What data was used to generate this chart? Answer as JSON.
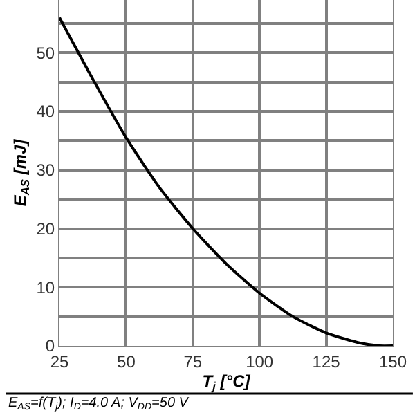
{
  "chart_data": {
    "type": "line",
    "xlabel": "T$_{j}$ [°C]",
    "ylabel": "E$_{AS}$ [mJ]",
    "x": [
      25,
      37.5,
      50,
      62.5,
      75,
      87.5,
      100,
      112.5,
      125,
      137.5,
      145,
      150
    ],
    "series": [
      {
        "color": "#000000",
        "values": [
          56,
          45.5,
          35.5,
          27,
          20,
          14,
          9,
          5,
          2.2,
          0.5,
          0,
          0
        ]
      }
    ],
    "xlim": [
      25,
      150
    ],
    "xticks": [
      25,
      50,
      75,
      100,
      125,
      150
    ],
    "ylim": [
      0,
      59
    ],
    "yticks": [
      0,
      {
        "value": 5,
        "label": null
      },
      10,
      {
        "value": 15,
        "label": null
      },
      20,
      {
        "value": 25,
        "label": null
      },
      30,
      {
        "value": 35,
        "label": null
      },
      40,
      {
        "value": 45,
        "label": null
      },
      50,
      {
        "value": 55,
        "label": null
      }
    ],
    "grid": true,
    "marker": "none",
    "line_style": "solid",
    "annotations": [
      "E$_{AS}$=f(T$_{j}$); I$_{D}$=4.0 A; V$_{DD}$=50 V"
    ]
  }
}
